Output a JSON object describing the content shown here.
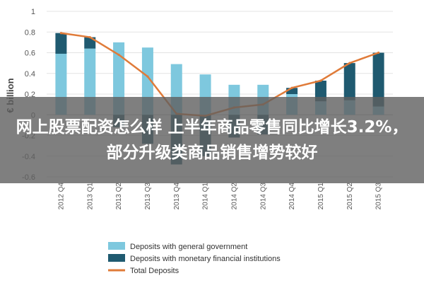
{
  "overlay": {
    "headline": "网上股票配资怎么样 上半年商品零售同比增长3.2%，部分升级类商品销售增势较好"
  },
  "chart_data": {
    "type": "bar",
    "ylabel": "€ billion",
    "ylim": [
      -0.6,
      1
    ],
    "yticks": [
      1,
      0.8,
      0.6,
      0.4,
      0.2,
      0,
      -0.2,
      -0.4,
      -0.6
    ],
    "ytick_labels": [
      "1",
      "0.8",
      "0.6",
      "0.4",
      "0.2",
      "0",
      "-0.2",
      "-0.4",
      "-0.6"
    ],
    "categories": [
      "2012 Q4",
      "2013 Q1",
      "2013 Q2",
      "2013 Q3",
      "2013 Q4",
      "2014 Q1",
      "2014 Q2",
      "2014 Q3",
      "2014 Q4",
      "2015 Q1",
      "2015 Q2",
      "2015 Q3"
    ],
    "legend_position": "bottom",
    "series": [
      {
        "name": "Deposits with general government",
        "kind": "bar",
        "color": "#7ec8de",
        "values": [
          0.59,
          0.64,
          0.7,
          0.65,
          0.49,
          0.39,
          0.29,
          0.29,
          0.2,
          0.13,
          0.14,
          0.08
        ]
      },
      {
        "name": "Deposits with monetary financial institutions",
        "kind": "bar",
        "color": "#1f5a70",
        "values": [
          0.2,
          0.11,
          -0.12,
          -0.28,
          -0.48,
          -0.4,
          -0.22,
          -0.19,
          0.06,
          0.2,
          0.36,
          0.52
        ]
      },
      {
        "name": "Total Deposits",
        "kind": "line",
        "color": "#e07b39",
        "values": [
          0.79,
          0.75,
          0.58,
          0.37,
          0.01,
          -0.01,
          0.07,
          0.1,
          0.26,
          0.33,
          0.5,
          0.6
        ]
      }
    ]
  }
}
